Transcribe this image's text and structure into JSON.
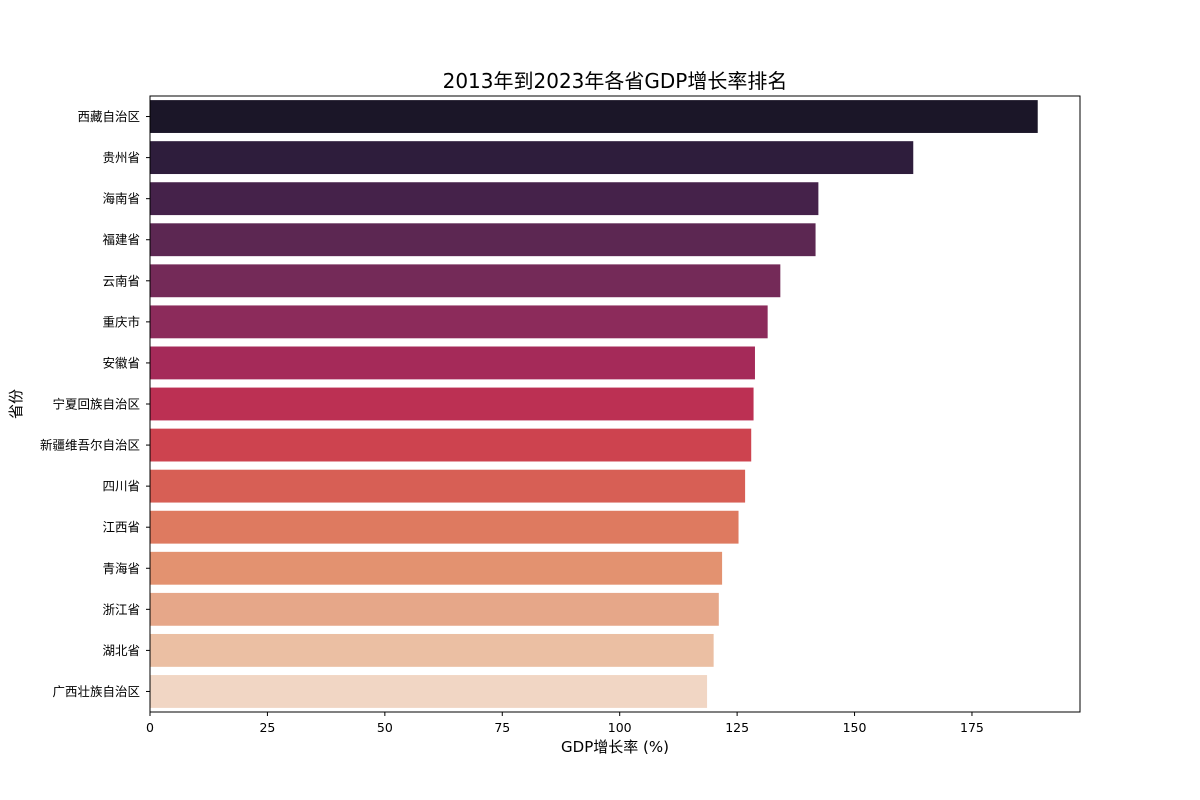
{
  "chart_data": {
    "type": "bar",
    "orientation": "horizontal",
    "title": "2013年到2023年各省GDP增长率排名",
    "xlabel": "GDP增长率 (%)",
    "ylabel": "省份",
    "xlim": [
      0,
      198
    ],
    "xticks": [
      "0",
      "25",
      "50",
      "75",
      "100",
      "125",
      "150",
      "175"
    ],
    "grid": false,
    "palette": "rocket",
    "categories": [
      "西藏自治区",
      "贵州省",
      "海南省",
      "福建省",
      "云南省",
      "重庆市",
      "安徽省",
      "宁夏回族自治区",
      "新疆维吾尔自治区",
      "四川省",
      "江西省",
      "青海省",
      "浙江省",
      "湖北省",
      "广西壮族自治区"
    ],
    "values": [
      189.0,
      162.5,
      142.3,
      141.7,
      134.2,
      131.5,
      128.8,
      128.5,
      128.0,
      126.7,
      125.3,
      121.8,
      121.1,
      120.0,
      118.6
    ],
    "colors": [
      "#1b1628",
      "#2e1d3c",
      "#45224a",
      "#5c2752",
      "#742a58",
      "#8c2b5b",
      "#a52a59",
      "#bc3053",
      "#cd434f",
      "#d75f55",
      "#de7a60",
      "#e39270",
      "#e6a789",
      "#ebbfa3",
      "#f1d6c4"
    ]
  }
}
